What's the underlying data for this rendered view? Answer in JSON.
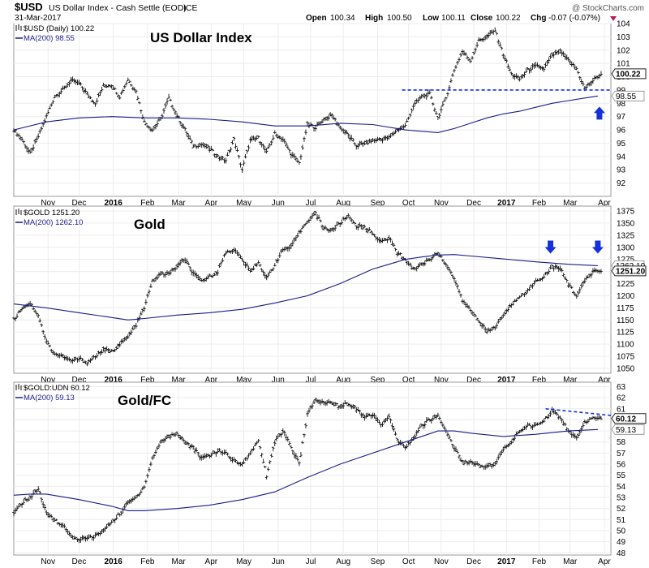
{
  "header": {
    "symbol": "$USD",
    "description": "US Dollar Index - Cash Settle (EOD)",
    "exchange": "ICE",
    "date": "31-Mar-2017",
    "open_label": "Open",
    "open": "100.34",
    "high_label": "High",
    "high": "100.50",
    "low_label": "Low",
    "low": "100.11",
    "close_label": "Close",
    "close": "100.22",
    "chg_label": "Chg",
    "chg": "-0.07 (-0.07%)",
    "watermark": "@ StockCharts.com"
  },
  "x_axis": {
    "months": [
      {
        "label": "Nov",
        "x": 5.05
      },
      {
        "label": "Dec",
        "x": 6.0
      },
      {
        "label": "2016",
        "x": 7.05,
        "year": true
      },
      {
        "label": "Feb",
        "x": 8.1
      },
      {
        "label": "Mar",
        "x": 9.05
      },
      {
        "label": "Apr",
        "x": 10.05
      },
      {
        "label": "May",
        "x": 11.05
      },
      {
        "label": "Jun",
        "x": 12.1
      },
      {
        "label": "Jul",
        "x": 13.1
      },
      {
        "label": "Aug",
        "x": 14.1
      },
      {
        "label": "Sep",
        "x": 15.15
      },
      {
        "label": "Oct",
        "x": 16.1
      },
      {
        "label": "Nov",
        "x": 17.1
      },
      {
        "label": "Dec",
        "x": 18.1
      },
      {
        "label": "2017",
        "x": 19.1,
        "year": true
      },
      {
        "label": "Feb",
        "x": 20.1
      },
      {
        "label": "Mar",
        "x": 21.05
      },
      {
        "label": "Apr",
        "x": 22.1
      }
    ],
    "min": 4.0,
    "max": 22.3
  },
  "chart_data": [
    {
      "type": "line",
      "title": "US Dollar Index",
      "legend": [
        {
          "text": "$USD (Daily) 100.22",
          "icon": "candles-icon"
        },
        {
          "text": "MA(200) 98.55",
          "icon": "line-icon"
        }
      ],
      "ylim": [
        91,
        104
      ],
      "yticks": [
        "92",
        "93",
        "94",
        "95",
        "96",
        "97",
        "98",
        "99",
        "100",
        "101",
        "102",
        "103",
        "104"
      ],
      "last_label": "100.22",
      "ma_label": "98.55",
      "series": [
        {
          "name": "$USD (Daily)",
          "x": [
            4.0,
            4.25,
            4.5,
            4.75,
            5.0,
            5.25,
            5.5,
            5.75,
            6.0,
            6.25,
            6.5,
            6.75,
            7.0,
            7.25,
            7.5,
            7.75,
            8.0,
            8.25,
            8.5,
            8.75,
            9.0,
            9.25,
            9.5,
            9.75,
            10.0,
            10.25,
            10.5,
            10.75,
            11.0,
            11.25,
            11.5,
            11.75,
            12.0,
            12.25,
            12.5,
            12.75,
            13.0,
            13.25,
            13.5,
            13.75,
            14.0,
            14.25,
            14.5,
            14.75,
            15.0,
            15.25,
            15.5,
            15.75,
            16.0,
            16.25,
            16.5,
            16.75,
            17.0,
            17.25,
            17.5,
            17.75,
            18.0,
            18.25,
            18.5,
            18.75,
            19.0,
            19.25,
            19.5,
            19.75,
            20.0,
            20.25,
            20.5,
            20.75,
            21.0,
            21.25,
            21.5,
            21.75,
            22.0
          ],
          "y": [
            96.0,
            95.3,
            94.2,
            95.5,
            97.0,
            98.5,
            99.0,
            99.7,
            99.5,
            98.7,
            98.0,
            99.3,
            99.4,
            98.5,
            99.8,
            98.9,
            96.6,
            96.0,
            96.8,
            98.4,
            97.1,
            96.0,
            94.8,
            94.9,
            94.6,
            94.0,
            93.7,
            95.3,
            93.0,
            95.2,
            95.4,
            94.3,
            95.7,
            95.3,
            94.2,
            93.5,
            96.4,
            96.2,
            96.8,
            97.1,
            96.2,
            95.6,
            94.8,
            95.0,
            95.2,
            95.3,
            95.4,
            96.0,
            96.3,
            97.8,
            98.5,
            98.7,
            96.9,
            98.4,
            100.5,
            101.9,
            101.2,
            102.7,
            103.0,
            103.5,
            101.7,
            100.2,
            99.8,
            100.5,
            100.8,
            100.6,
            101.6,
            101.9,
            101.2,
            100.6,
            99.1,
            99.7,
            100.22
          ]
        },
        {
          "name": "MA(200)",
          "x": [
            4.0,
            5.0,
            6.0,
            7.0,
            8.0,
            9.0,
            10.0,
            11.0,
            12.0,
            13.0,
            14.0,
            15.0,
            16.0,
            17.0,
            17.5,
            18.0,
            18.5,
            19.0,
            19.5,
            20.0,
            20.5,
            21.0,
            21.5,
            21.9
          ],
          "y": [
            96.0,
            96.6,
            96.9,
            97.0,
            96.9,
            96.9,
            96.8,
            96.6,
            96.3,
            96.3,
            96.5,
            96.4,
            96.0,
            95.8,
            96.1,
            96.5,
            96.9,
            97.2,
            97.4,
            97.7,
            98.0,
            98.2,
            98.4,
            98.55
          ]
        }
      ],
      "annotations": [
        {
          "type": "dashed-line",
          "x": [
            15.9,
            22.3
          ],
          "y": [
            99.0,
            99.0
          ]
        },
        {
          "type": "arrow-up",
          "x": 21.95,
          "y": 97.2
        }
      ]
    },
    {
      "type": "line",
      "title": "Gold",
      "legend": [
        {
          "text": "$GOLD 1251.20",
          "icon": "candles-icon"
        },
        {
          "text": "MA(200) 1262.10",
          "icon": "line-icon"
        }
      ],
      "ylim": [
        1040,
        1385
      ],
      "yticks": [
        "1050",
        "1075",
        "1100",
        "1125",
        "1150",
        "1175",
        "1200",
        "1225",
        "1250",
        "1275",
        "1300",
        "1325",
        "1350",
        "1375"
      ],
      "last_label": "1251.20",
      "ma_label": "1262.10",
      "series": [
        {
          "name": "$GOLD",
          "x": [
            4.0,
            4.25,
            4.5,
            4.75,
            5.0,
            5.25,
            5.5,
            5.75,
            6.0,
            6.25,
            6.5,
            6.75,
            7.0,
            7.25,
            7.5,
            7.75,
            8.0,
            8.25,
            8.5,
            8.75,
            9.0,
            9.25,
            9.5,
            9.75,
            10.0,
            10.25,
            10.5,
            10.75,
            11.0,
            11.25,
            11.5,
            11.75,
            12.0,
            12.25,
            12.5,
            12.75,
            13.0,
            13.25,
            13.5,
            13.75,
            14.0,
            14.25,
            14.5,
            14.75,
            15.0,
            15.25,
            15.5,
            15.75,
            16.0,
            16.25,
            16.5,
            16.75,
            17.0,
            17.25,
            17.5,
            17.75,
            18.0,
            18.25,
            18.5,
            18.75,
            19.0,
            19.25,
            19.5,
            19.75,
            20.0,
            20.25,
            20.5,
            20.75,
            21.0,
            21.25,
            21.5,
            21.75,
            22.0
          ],
          "y": [
            1150,
            1175,
            1185,
            1160,
            1105,
            1080,
            1075,
            1065,
            1070,
            1062,
            1075,
            1088,
            1085,
            1100,
            1115,
            1140,
            1175,
            1230,
            1245,
            1245,
            1260,
            1275,
            1245,
            1230,
            1240,
            1250,
            1290,
            1295,
            1275,
            1250,
            1270,
            1235,
            1265,
            1295,
            1300,
            1330,
            1355,
            1370,
            1340,
            1335,
            1350,
            1365,
            1345,
            1340,
            1330,
            1310,
            1320,
            1290,
            1275,
            1255,
            1265,
            1275,
            1290,
            1265,
            1235,
            1190,
            1170,
            1150,
            1125,
            1135,
            1160,
            1180,
            1200,
            1210,
            1230,
            1240,
            1260,
            1255,
            1225,
            1200,
            1230,
            1250,
            1251.2
          ]
        },
        {
          "name": "MA(200)",
          "x": [
            4.0,
            5.0,
            6.0,
            7.0,
            7.5,
            8.0,
            9.0,
            10.0,
            11.0,
            12.0,
            13.0,
            14.0,
            15.0,
            15.5,
            16.0,
            16.5,
            17.0,
            17.5,
            18.0,
            19.0,
            20.0,
            21.0,
            21.9
          ],
          "y": [
            1183,
            1175,
            1165,
            1155,
            1150,
            1153,
            1160,
            1165,
            1172,
            1185,
            1200,
            1225,
            1255,
            1265,
            1275,
            1280,
            1284,
            1285,
            1282,
            1276,
            1270,
            1265,
            1262.1
          ]
        }
      ],
      "annotations": [
        {
          "type": "arrow-down",
          "x": 20.45,
          "y": 1302
        },
        {
          "type": "arrow-down",
          "x": 21.9,
          "y": 1302
        }
      ]
    },
    {
      "type": "line",
      "title": "Gold/FC",
      "legend": [
        {
          "text": "$GOLD:UDN 60.12",
          "icon": "candles-icon"
        },
        {
          "text": "MA(200) 59.13",
          "icon": "line-icon"
        }
      ],
      "ylim": [
        47.8,
        63.4
      ],
      "yticks": [
        "48",
        "49",
        "50",
        "51",
        "52",
        "53",
        "54",
        "55",
        "56",
        "57",
        "58",
        "59",
        "60",
        "61",
        "62",
        "63"
      ],
      "last_label": "60.12",
      "ma_label": "59.13",
      "series": [
        {
          "name": "$GOLD:UDN",
          "x": [
            4.0,
            4.25,
            4.5,
            4.75,
            5.0,
            5.25,
            5.5,
            5.75,
            6.0,
            6.25,
            6.5,
            6.75,
            7.0,
            7.25,
            7.5,
            7.75,
            8.0,
            8.25,
            8.5,
            8.75,
            9.0,
            9.25,
            9.5,
            9.75,
            10.0,
            10.25,
            10.5,
            10.75,
            11.0,
            11.25,
            11.5,
            11.75,
            12.0,
            12.25,
            12.5,
            12.75,
            13.0,
            13.25,
            13.5,
            13.75,
            14.0,
            14.25,
            14.5,
            14.75,
            15.0,
            15.25,
            15.5,
            15.75,
            16.0,
            16.25,
            16.5,
            16.75,
            17.0,
            17.25,
            17.5,
            17.75,
            18.0,
            18.25,
            18.5,
            18.75,
            19.0,
            19.25,
            19.5,
            19.75,
            20.0,
            20.25,
            20.5,
            20.75,
            21.0,
            21.25,
            21.5,
            21.75,
            22.0
          ],
          "y": [
            51.5,
            52.5,
            53.0,
            53.8,
            51.5,
            51.0,
            50.5,
            49.5,
            49.2,
            49.3,
            49.5,
            50.0,
            50.8,
            51.5,
            52.5,
            53.0,
            54.0,
            56.5,
            58.0,
            58.5,
            58.8,
            58.0,
            57.5,
            56.5,
            56.8,
            57.2,
            57.0,
            56.3,
            56.0,
            57.0,
            58.2,
            55.0,
            58.0,
            59.0,
            57.5,
            56.0,
            60.5,
            61.8,
            61.5,
            61.6,
            61.2,
            61.5,
            61.0,
            60.2,
            60.5,
            59.5,
            60.3,
            58.2,
            57.5,
            58.3,
            59.5,
            60.0,
            60.4,
            59.0,
            57.5,
            56.2,
            56.2,
            55.9,
            55.8,
            56.0,
            57.3,
            58.0,
            59.0,
            59.5,
            59.5,
            60.0,
            60.8,
            60.2,
            59.0,
            58.3,
            59.7,
            60.3,
            60.12
          ]
        },
        {
          "name": "MA(200)",
          "x": [
            4.0,
            4.5,
            5.0,
            6.0,
            7.0,
            7.5,
            8.0,
            9.0,
            10.0,
            11.0,
            12.0,
            13.0,
            14.0,
            15.0,
            16.0,
            17.0,
            17.5,
            18.0,
            19.0,
            20.0,
            21.0,
            21.9
          ],
          "y": [
            53.2,
            53.3,
            53.3,
            52.8,
            52.2,
            51.8,
            51.8,
            52.0,
            52.3,
            52.8,
            53.5,
            54.8,
            56.0,
            57.0,
            58.0,
            59.0,
            59.0,
            58.8,
            58.5,
            58.7,
            59.0,
            59.13
          ]
        }
      ],
      "annotations": [
        {
          "type": "dashed-line",
          "x": [
            20.3,
            22.3
          ],
          "y": [
            61.0,
            60.4
          ]
        }
      ]
    }
  ]
}
